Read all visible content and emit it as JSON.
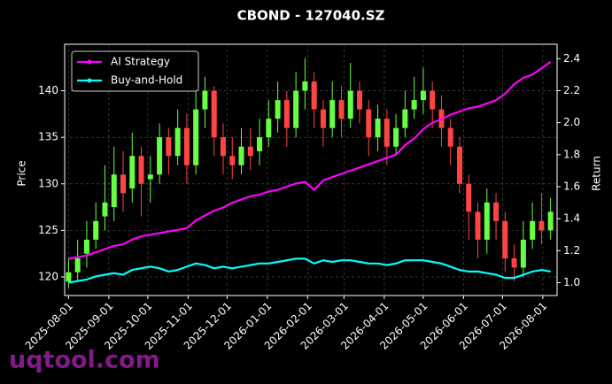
{
  "chart_data": {
    "type": "candlestick",
    "title": "CBOND - 127040.SZ",
    "ylabel": "Price",
    "y2label": "Return",
    "watermark": "uqtool.com",
    "x": [
      "2025-08-01",
      "2025-08-08",
      "2025-08-15",
      "2025-08-22",
      "2025-08-29",
      "2025-09-05",
      "2025-09-12",
      "2025-09-19",
      "2025-09-26",
      "2025-10-03",
      "2025-10-10",
      "2025-10-17",
      "2025-10-24",
      "2025-10-31",
      "2025-11-07",
      "2025-11-14",
      "2025-11-21",
      "2025-11-28",
      "2025-12-05",
      "2025-12-12",
      "2025-12-19",
      "2025-12-26",
      "2026-01-02",
      "2026-01-09",
      "2026-01-16",
      "2026-01-23",
      "2026-01-30",
      "2026-02-06",
      "2026-02-13",
      "2026-02-20",
      "2026-02-27",
      "2026-03-06",
      "2026-03-13",
      "2026-03-20",
      "2026-03-27",
      "2026-04-03",
      "2026-04-10",
      "2026-04-17",
      "2026-04-24",
      "2026-05-01",
      "2026-05-08",
      "2026-05-15",
      "2026-05-22",
      "2026-05-29",
      "2026-06-05",
      "2026-06-12",
      "2026-06-19",
      "2026-06-26",
      "2026-07-03",
      "2026-07-10",
      "2026-07-17",
      "2026-07-24",
      "2026-07-31",
      "2026-08-07"
    ],
    "ohlc": {
      "open": [
        119.5,
        120.5,
        122.5,
        124,
        126.5,
        127.5,
        131,
        129.5,
        133,
        130.5,
        131,
        135,
        133,
        136,
        132,
        138,
        140,
        135,
        133,
        132,
        134,
        133.5,
        135,
        137,
        139,
        136,
        140,
        141,
        138,
        136,
        139,
        137,
        140,
        138,
        135,
        137,
        134,
        136,
        138,
        139,
        140,
        138,
        136,
        134,
        130,
        127,
        124,
        128,
        126,
        122,
        121,
        124,
        126,
        125
      ],
      "high": [
        122,
        124,
        126,
        128,
        132,
        134,
        133.5,
        135.5,
        134,
        133,
        136.5,
        136,
        138,
        137.5,
        140,
        141.5,
        140.5,
        136.5,
        135,
        136,
        136,
        137,
        139,
        141,
        140,
        142,
        143.5,
        142,
        139,
        141,
        140.5,
        143,
        141,
        139,
        138.5,
        138,
        137.5,
        140,
        141.5,
        142.5,
        141,
        139.5,
        137,
        135,
        131,
        128,
        129.5,
        129,
        127,
        123.5,
        126,
        128,
        129,
        128.5
      ],
      "low": [
        118.8,
        119.5,
        121,
        123,
        125,
        126,
        127,
        128,
        126.5,
        128,
        130,
        131,
        132,
        130,
        131,
        136,
        133,
        131,
        130.5,
        131,
        131.5,
        132,
        134,
        135.5,
        134,
        135,
        138,
        136,
        134,
        135,
        135,
        136,
        136.5,
        133,
        133.5,
        132,
        133,
        135,
        137,
        137.5,
        136,
        134,
        132,
        129,
        124,
        122,
        122.5,
        124,
        120.5,
        119.5,
        120,
        123,
        123.5,
        124
      ],
      "close": [
        120.5,
        122,
        124,
        126,
        128,
        131,
        129,
        133,
        130,
        131,
        135,
        133,
        136,
        132,
        138,
        140,
        135,
        133,
        132,
        134,
        133,
        135,
        137,
        139,
        136,
        140,
        141,
        138,
        136,
        139,
        137,
        140,
        138,
        135,
        137,
        134,
        136,
        138,
        139,
        140,
        138,
        136,
        134,
        130,
        127,
        124,
        128,
        126,
        122,
        121,
        124,
        126,
        125,
        127
      ]
    },
    "up_color": "#66ff44",
    "down_color": "#ff4444",
    "series": [
      {
        "name": "AI Strategy",
        "color": "#ff00ff",
        "axis": "y2",
        "values": [
          1.15,
          1.16,
          1.17,
          1.19,
          1.21,
          1.23,
          1.24,
          1.27,
          1.29,
          1.3,
          1.31,
          1.32,
          1.33,
          1.34,
          1.39,
          1.42,
          1.45,
          1.47,
          1.5,
          1.52,
          1.54,
          1.55,
          1.57,
          1.58,
          1.6,
          1.62,
          1.63,
          1.58,
          1.64,
          1.66,
          1.68,
          1.7,
          1.72,
          1.74,
          1.76,
          1.78,
          1.8,
          1.86,
          1.9,
          1.96,
          2.0,
          2.02,
          2.05,
          2.07,
          2.09,
          2.1,
          2.12,
          2.14,
          2.18,
          2.24,
          2.28,
          2.3,
          2.34,
          2.38
        ]
      },
      {
        "name": "Buy-and-Hold",
        "color": "#00ffff",
        "axis": "y2",
        "values": [
          1.0,
          1.01,
          1.02,
          1.04,
          1.05,
          1.06,
          1.05,
          1.08,
          1.09,
          1.1,
          1.09,
          1.07,
          1.08,
          1.1,
          1.12,
          1.11,
          1.09,
          1.1,
          1.09,
          1.1,
          1.11,
          1.12,
          1.12,
          1.13,
          1.14,
          1.15,
          1.15,
          1.12,
          1.14,
          1.13,
          1.14,
          1.14,
          1.13,
          1.12,
          1.12,
          1.11,
          1.12,
          1.14,
          1.14,
          1.14,
          1.13,
          1.12,
          1.1,
          1.08,
          1.07,
          1.07,
          1.06,
          1.05,
          1.03,
          1.03,
          1.05,
          1.07,
          1.08,
          1.07
        ]
      }
    ],
    "xlim": [
      "2025-07-29",
      "2026-08-12"
    ],
    "xticks": [
      "2025-08-01",
      "2025-09-01",
      "2025-10-01",
      "2025-11-01",
      "2025-12-01",
      "2026-01-01",
      "2026-02-01",
      "2026-03-01",
      "2026-04-01",
      "2026-05-01",
      "2026-06-01",
      "2026-07-01",
      "2026-08-01"
    ],
    "ylim": [
      118,
      145
    ],
    "yticks": [
      120,
      125,
      130,
      135,
      140
    ],
    "y2lim": [
      0.92,
      2.49
    ],
    "y2ticks": [
      {
        "value": 1,
        "label": "1.0"
      },
      1.2,
      1.4,
      1.6,
      1.8,
      {
        "value": 2,
        "label": "2.0"
      },
      2.2,
      2.4
    ],
    "grid": true,
    "legend": "upper left"
  }
}
